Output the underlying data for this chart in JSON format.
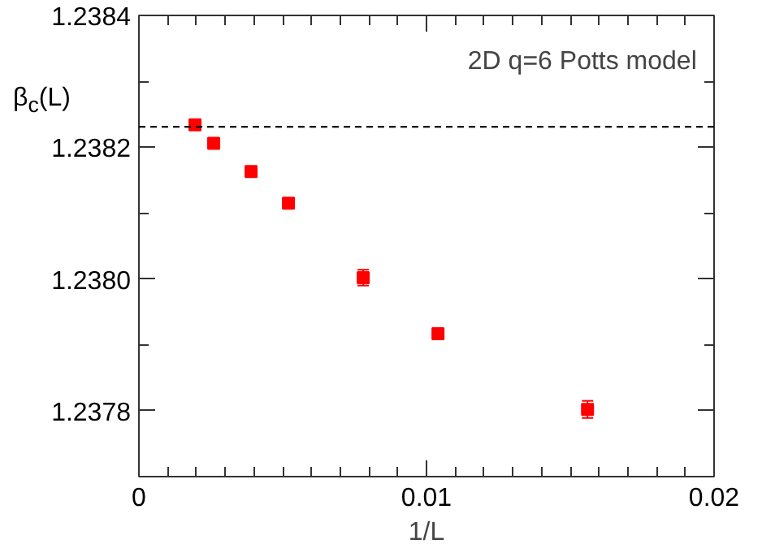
{
  "chart_data": {
    "type": "scatter",
    "xlabel": "1/L",
    "ylabel": "β$_{c}$(L)",
    "annotations": [
      "2D q=6 Potts model"
    ],
    "x": [
      0.00195,
      0.0026,
      0.0039,
      0.0052,
      0.0078,
      0.0104,
      0.0156
    ],
    "series": [
      {
        "color": "#ff0000",
        "values": [
          1.238234,
          1.238206,
          1.238163,
          1.238115,
          1.238002,
          1.237917,
          1.237802
        ],
        "errors": [
          3e-06,
          3e-06,
          3e-06,
          3e-06,
          1.2e-05,
          6e-06,
          1.3e-05
        ]
      }
    ],
    "marker": "square",
    "xlim": [
      0,
      0.02
    ],
    "ylim": [
      1.2377,
      1.2384
    ],
    "xticks": [
      0,
      {
        "value": 0.001,
        "label": null
      },
      {
        "value": 0.002,
        "label": null
      },
      {
        "value": 0.003,
        "label": null
      },
      {
        "value": 0.004,
        "label": null
      },
      {
        "value": 0.005,
        "label": null
      },
      {
        "value": 0.006,
        "label": null
      },
      {
        "value": 0.007,
        "label": null
      },
      {
        "value": 0.008,
        "label": null
      },
      {
        "value": 0.009,
        "label": null
      },
      0.01,
      {
        "value": 0.011,
        "label": null
      },
      {
        "value": 0.012,
        "label": null
      },
      {
        "value": 0.013,
        "label": null
      },
      {
        "value": 0.014,
        "label": null
      },
      {
        "value": 0.015,
        "label": null
      },
      {
        "value": 0.016,
        "label": null
      },
      {
        "value": 0.017,
        "label": null
      },
      {
        "value": 0.018,
        "label": null
      },
      {
        "value": 0.019,
        "label": null
      },
      0.02
    ],
    "yticks": [
      {
        "value": 1.2377,
        "label": null
      },
      1.2378,
      {
        "value": 1.2379,
        "label": null
      },
      {
        "value": 1.238,
        "label": "1.2380"
      },
      {
        "value": 1.2381,
        "label": null
      },
      1.2382,
      {
        "value": 1.2383,
        "label": null
      },
      1.2384
    ],
    "ref_lines": [
      {
        "axis": "y",
        "value": 1.238231,
        "color": "#000000",
        "line_style": "dashed"
      }
    ],
    "grid": false
  }
}
